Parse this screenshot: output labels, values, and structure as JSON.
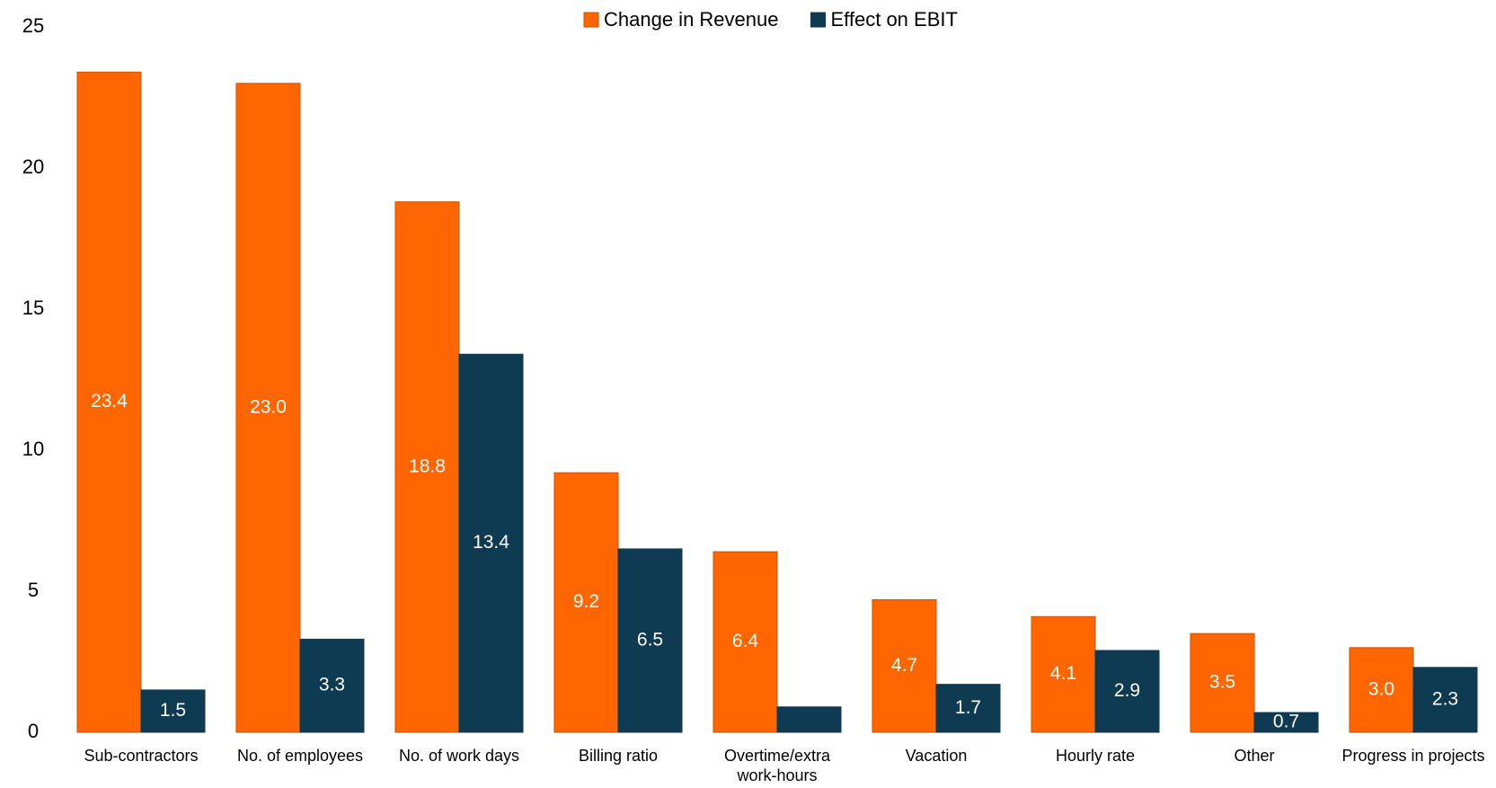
{
  "chart_data": {
    "type": "bar",
    "categories": [
      "Sub-contractors",
      "No. of employees",
      "No. of work days",
      "Billing ratio",
      "Overtime/extra work-hours",
      "Vacation",
      "Hourly rate",
      "Other",
      "Progress in projects"
    ],
    "series": [
      {
        "name": "Change in Revenue",
        "color": "#ff6600",
        "values": [
          23.4,
          23.0,
          18.8,
          9.2,
          6.4,
          4.7,
          4.1,
          3.5,
          3.0
        ],
        "value_labels": [
          "23.4",
          "23.0",
          "18.8",
          "9.2",
          "6.4",
          "4.7",
          "4.1",
          "3.5",
          "3.0"
        ]
      },
      {
        "name": "Effect on EBIT",
        "color": "#0e3a52",
        "values": [
          1.5,
          3.3,
          13.4,
          6.5,
          0.9,
          1.7,
          2.9,
          0.7,
          2.3
        ],
        "value_labels": [
          "1.5",
          "3.3",
          "13.4",
          "6.5",
          null,
          "1.7",
          "2.9",
          "0.7",
          "2.3"
        ]
      }
    ],
    "ylim": [
      0,
      25
    ],
    "yticks": [
      0,
      5,
      10,
      15,
      20,
      25
    ],
    "grid": false,
    "legend": "top"
  }
}
